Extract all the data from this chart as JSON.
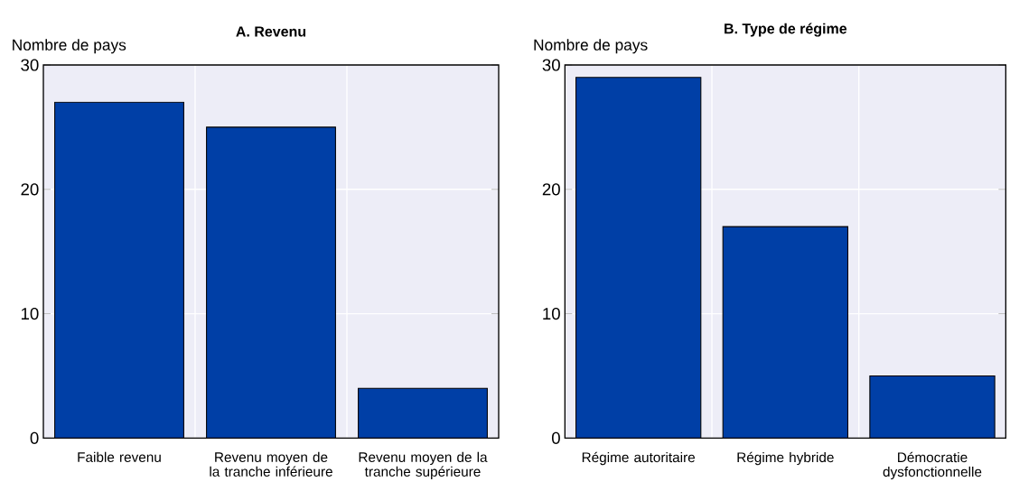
{
  "chart_data": [
    {
      "type": "bar",
      "title": "A. Revenu",
      "ylabel": "Nombre de pays",
      "categories": [
        "Faible revenu",
        "Revenu moyen de la tranche inférieure",
        "Revenu moyen de la tranche supérieure"
      ],
      "values": [
        27,
        25,
        4
      ],
      "color": "#003fa6",
      "ylim": [
        0,
        30
      ],
      "yticks": [
        0,
        10,
        20,
        30
      ],
      "grid": true
    },
    {
      "type": "bar",
      "title": "B. Type de régime",
      "ylabel": "Nombre de pays",
      "categories": [
        "Régime autoritaire",
        "Régime hybride",
        "Démocratie dysfonctionnelle"
      ],
      "values": [
        29,
        17,
        5
      ],
      "color": "#003fa6",
      "ylim": [
        0,
        30
      ],
      "yticks": [
        0,
        10,
        20,
        30
      ],
      "grid": true
    }
  ]
}
